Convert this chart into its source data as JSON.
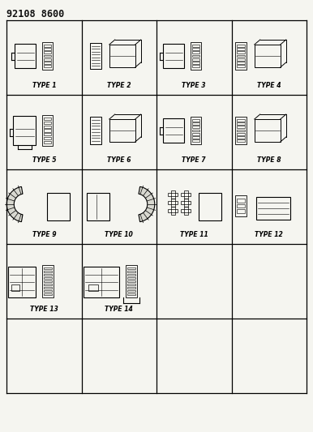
{
  "title": "92108 8600",
  "background": "#f5f5f0",
  "grid_color": "#000000",
  "grid_rows": 5,
  "grid_cols": 4,
  "cell_labels": [
    "TYPE 1",
    "TYPE 2",
    "TYPE 3",
    "TYPE 4",
    "TYPE 5",
    "TYPE 6",
    "TYPE 7",
    "TYPE 8",
    "TYPE 9",
    "TYPE 10",
    "TYPE 11",
    "TYPE 12",
    "TYPE 13",
    "TYPE 14",
    "",
    "",
    "",
    "",
    "",
    ""
  ],
  "label_fontsize": 5.5,
  "title_fontsize": 8.5
}
